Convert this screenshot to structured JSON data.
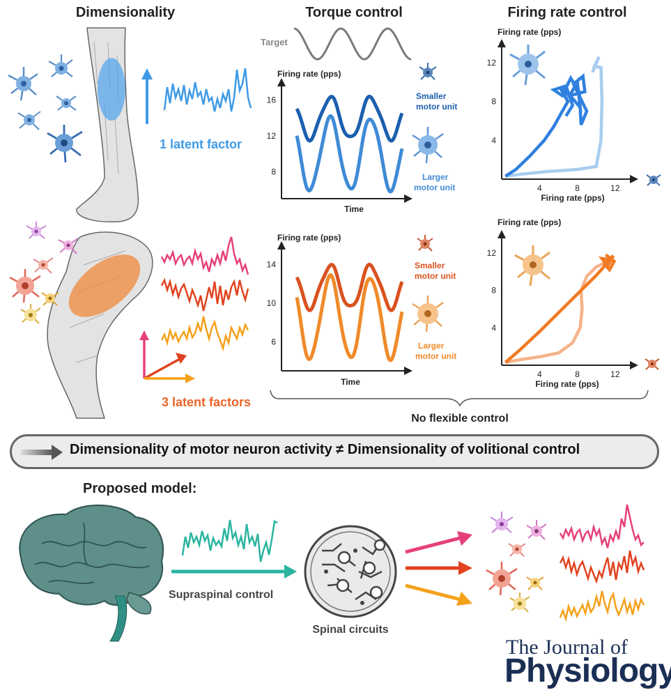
{
  "sections": {
    "dimensionality": "Dimensionality",
    "torque_control": "Torque control",
    "firing_rate_control": "Firing rate control"
  },
  "labels": {
    "target": "Target",
    "one_latent": "1 latent factor",
    "three_latent": "3 latent factors",
    "smaller_unit_1": "Smaller",
    "smaller_unit_2": "motor unit",
    "larger_unit_1": "Larger",
    "larger_unit_2": "motor unit",
    "no_flexible": "No flexible control",
    "banner": "Dimensionality of motor neuron activity ≠ Dimensionality of volitional control",
    "proposed_model": "Proposed model:",
    "supraspinal": "Supraspinal control",
    "spinal_circuits": "Spinal circuits",
    "journal_line1": "The Journal of",
    "journal_line2": "Physiology"
  },
  "colors": {
    "blue_dark": "#1c5fae",
    "blue_mid": "#3f8bd6",
    "blue_light": "#a8cdf0",
    "orange_dark": "#d9521f",
    "orange_mid": "#f08a2a",
    "orange_light": "#f6b38a",
    "pink": "#e6407c",
    "red": "#e0431f",
    "amber": "#f4a11a",
    "teal": "#2bb5a0",
    "journal": "#1b2f55"
  },
  "chart_data": [
    {
      "type": "line",
      "name": "torque-control-top",
      "ylabel": "Firing rate (pps)",
      "xlabel": "Time",
      "yticks": [
        8,
        12,
        16
      ],
      "ylim": [
        5,
        18
      ],
      "series": [
        {
          "label_lines": [
            "Smaller",
            "motor unit"
          ],
          "color": "#1c5fae",
          "mean": 14,
          "amp": 2.3,
          "phase": 0.0
        },
        {
          "label_lines": [
            "Larger",
            "motor unit"
          ],
          "color": "#3f8bd6",
          "mean": 10,
          "amp": 4.0,
          "phase": 0.0
        }
      ]
    },
    {
      "type": "line",
      "name": "torque-control-bottom",
      "ylabel": "Firing rate (pps)",
      "xlabel": "Time",
      "yticks": [
        6,
        10,
        14
      ],
      "ylim": [
        3,
        16
      ],
      "series": [
        {
          "label_lines": [
            "Smaller",
            "motor unit"
          ],
          "color": "#d9521f",
          "mean": 11.7,
          "amp": 2.2,
          "phase": 0.0
        },
        {
          "label_lines": [
            "Larger",
            "motor unit"
          ],
          "color": "#f08a2a",
          "mean": 8.5,
          "amp": 4.2,
          "phase": 0.0
        }
      ]
    },
    {
      "type": "line",
      "name": "firing-rate-control-top",
      "ylabel": "Firing rate (pps)",
      "xlabel": "Firing rate (pps)",
      "xticks": [
        4,
        8,
        12
      ],
      "yticks": [
        4,
        8,
        12
      ],
      "xlim": [
        0,
        14
      ],
      "ylim": [
        0,
        14
      ]
    },
    {
      "type": "line",
      "name": "firing-rate-control-bottom",
      "ylabel": "Firing rate (pps)",
      "xlabel": "Firing rate (pps)",
      "xticks": [
        4,
        8,
        12
      ],
      "yticks": [
        4,
        8,
        12
      ],
      "xlim": [
        0,
        14
      ],
      "ylim": [
        0,
        14
      ]
    }
  ]
}
